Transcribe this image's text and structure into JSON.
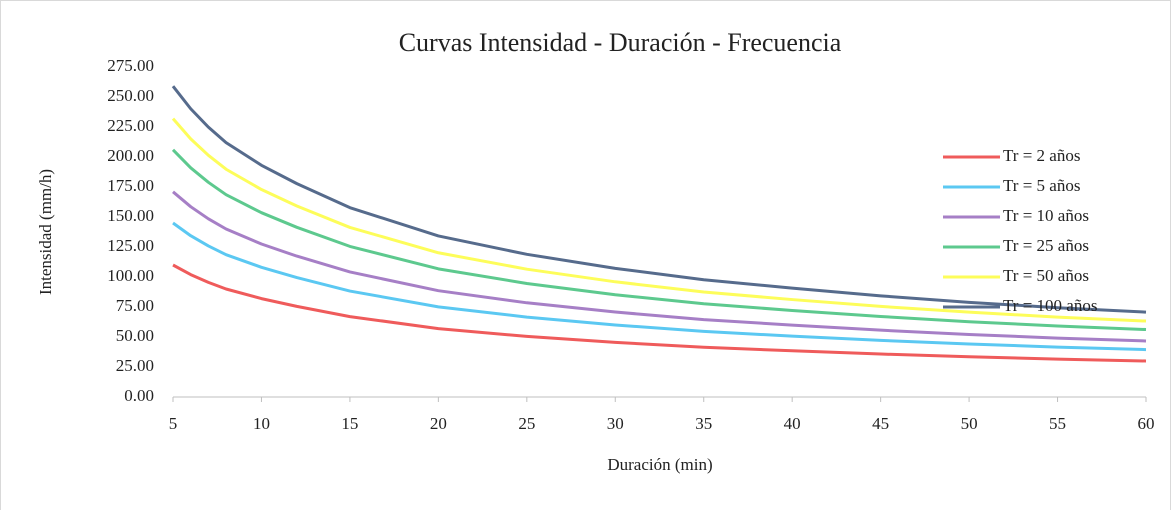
{
  "chart_data": {
    "type": "line",
    "title": "Curvas Intensidad - Duración - Frecuencia",
    "x_label": "Duración (min)",
    "y_label": "Intensidad (mm/h)",
    "x": [
      5,
      6,
      7,
      8,
      10,
      12,
      15,
      20,
      25,
      30,
      35,
      40,
      45,
      50,
      55,
      60
    ],
    "xlim": [
      5,
      60
    ],
    "xticks": [
      5,
      10,
      15,
      20,
      25,
      30,
      35,
      40,
      45,
      50,
      55,
      60
    ],
    "ylim": [
      0,
      275
    ],
    "yticks": [
      {
        "value": 0,
        "label": "0.00"
      },
      {
        "value": 25,
        "label": "25.00"
      },
      {
        "value": 50,
        "label": "50.00"
      },
      {
        "value": 75,
        "label": "75.00"
      },
      {
        "value": 100,
        "label": "100.00"
      },
      {
        "value": 125,
        "label": "125.00"
      },
      {
        "value": 150,
        "label": "150.00"
      },
      {
        "value": 175,
        "label": "175.00"
      },
      {
        "value": 200,
        "label": "200.00"
      },
      {
        "value": 225,
        "label": "225.00"
      },
      {
        "value": 250,
        "label": "250.00"
      },
      {
        "value": 275,
        "label": "275.00"
      }
    ],
    "grid": false,
    "legend": "right",
    "series": [
      {
        "name": "Tr = 2 años",
        "color": "#ef5b5b",
        "values": [
          110,
          102,
          95.5,
          90,
          82,
          75.5,
          67,
          57,
          50.5,
          45.5,
          41.5,
          38.5,
          35.8,
          33.5,
          31.6,
          30
        ]
      },
      {
        "name": "Tr = 5 años",
        "color": "#5bc8f2",
        "values": [
          145,
          134.4,
          125.9,
          118.6,
          108.1,
          99.5,
          88.3,
          75.1,
          66.6,
          60.0,
          54.7,
          50.7,
          47.2,
          44.2,
          41.6,
          39.5
        ]
      },
      {
        "name": "Tr = 10 años",
        "color": "#a67fc6",
        "values": [
          171,
          158.6,
          148.5,
          140.0,
          127.5,
          117.4,
          104.2,
          88.6,
          78.5,
          70.8,
          64.5,
          59.9,
          55.7,
          52.1,
          49.1,
          46.7
        ]
      },
      {
        "name": "Tr = 25 años",
        "color": "#5dc98e",
        "values": [
          206,
          191.0,
          178.9,
          168.6,
          153.6,
          141.4,
          125.5,
          106.8,
          94.6,
          85.2,
          77.7,
          72.1,
          67.1,
          62.7,
          59.2,
          56.2
        ]
      },
      {
        "name": "Tr = 50 años",
        "color": "#fdfd5a",
        "values": [
          232,
          215.1,
          201.4,
          189.8,
          172.9,
          159.2,
          141.3,
          120.2,
          106.5,
          96.0,
          87.5,
          81.2,
          75.5,
          70.7,
          66.6,
          63.3
        ]
      },
      {
        "name": "Tr = 100 años",
        "color": "#566b8c",
        "values": [
          259,
          240.2,
          224.9,
          212.0,
          193.1,
          177.8,
          157.8,
          134.2,
          118.9,
          107.2,
          97.7,
          90.7,
          84.3,
          78.9,
          74.4,
          70.7
        ]
      }
    ]
  }
}
